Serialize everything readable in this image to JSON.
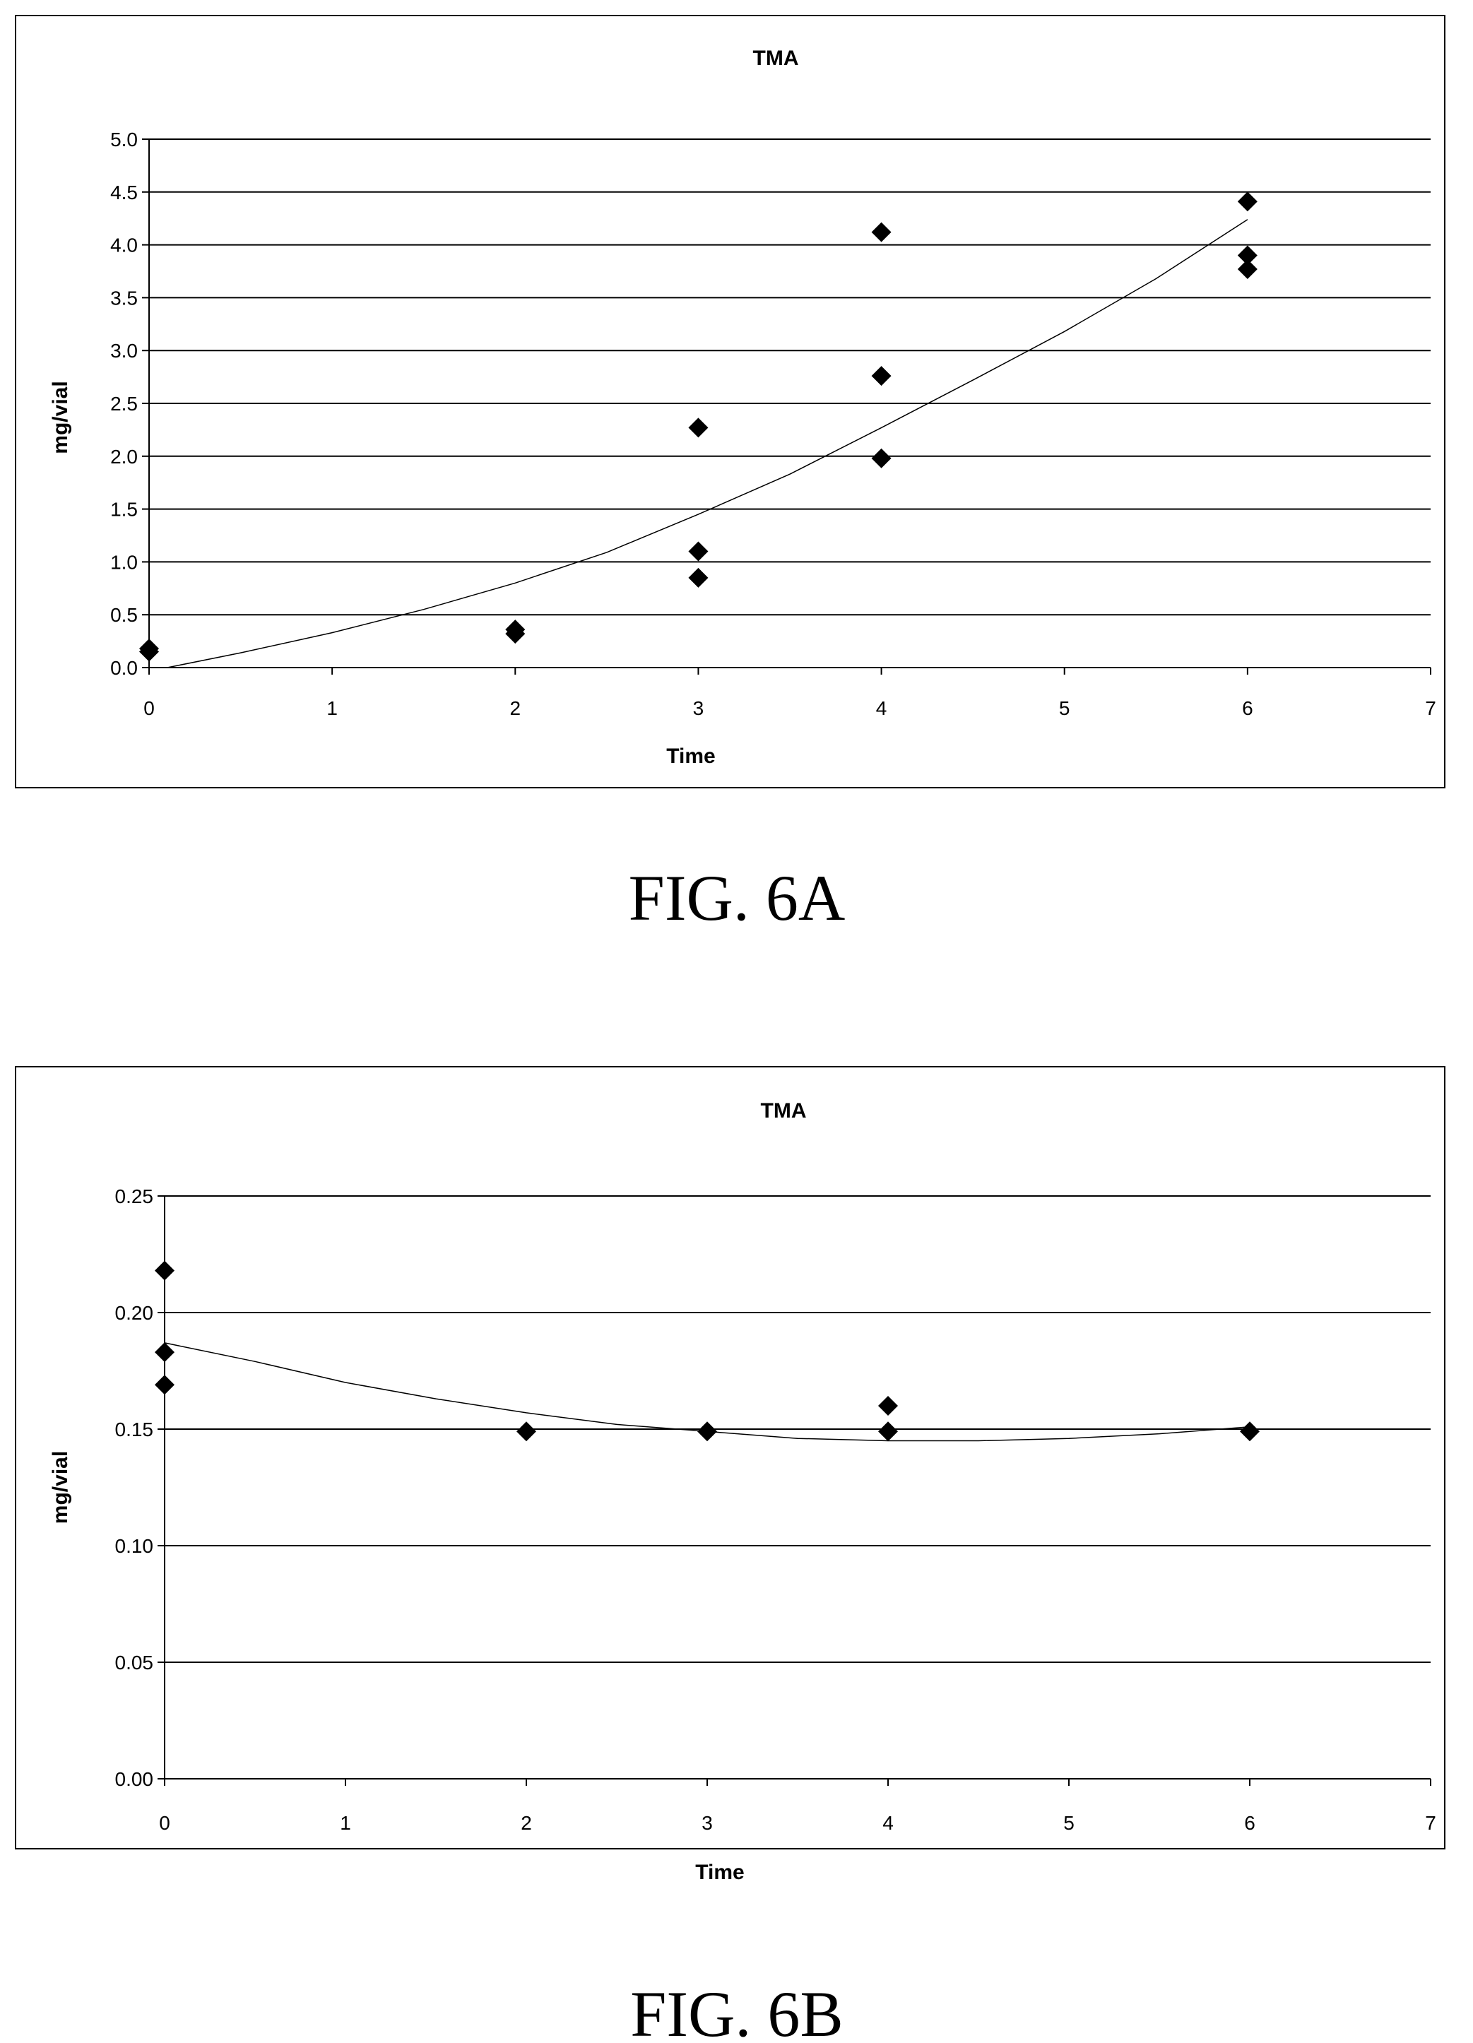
{
  "figures": [
    {
      "caption": "FIG. 6A"
    },
    {
      "caption": "FIG. 6B"
    }
  ],
  "chart_data": [
    {
      "type": "scatter",
      "title": "TMA",
      "xlabel": "Time",
      "ylabel": "mg/vial",
      "xlim": [
        0,
        7
      ],
      "ylim": [
        0,
        5
      ],
      "xticks": [
        0,
        1,
        2,
        3,
        4,
        5,
        6,
        7
      ],
      "yticks": [
        "0.0",
        "0.5",
        "1.0",
        "1.5",
        "2.0",
        "2.5",
        "3.0",
        "3.5",
        "4.0",
        "4.5",
        "5.0"
      ],
      "grid": "horizontal",
      "points": [
        {
          "x": 0,
          "y": 0.18
        },
        {
          "x": 0,
          "y": 0.15
        },
        {
          "x": 2,
          "y": 0.36
        },
        {
          "x": 2,
          "y": 0.32
        },
        {
          "x": 3,
          "y": 2.27
        },
        {
          "x": 3,
          "y": 1.1
        },
        {
          "x": 3,
          "y": 0.85
        },
        {
          "x": 4,
          "y": 4.12
        },
        {
          "x": 4,
          "y": 2.76
        },
        {
          "x": 4,
          "y": 1.98
        },
        {
          "x": 6,
          "y": 4.41
        },
        {
          "x": 6,
          "y": 3.9
        },
        {
          "x": 6,
          "y": 3.77
        }
      ],
      "trendline": {
        "type": "polynomial",
        "points": [
          {
            "x": 0.1,
            "y": 0.0
          },
          {
            "x": 0.5,
            "y": 0.14
          },
          {
            "x": 1.0,
            "y": 0.33
          },
          {
            "x": 1.5,
            "y": 0.55
          },
          {
            "x": 2.0,
            "y": 0.8
          },
          {
            "x": 2.5,
            "y": 1.09
          },
          {
            "x": 3.0,
            "y": 1.45
          },
          {
            "x": 3.5,
            "y": 1.83
          },
          {
            "x": 4.0,
            "y": 2.27
          },
          {
            "x": 4.5,
            "y": 2.72
          },
          {
            "x": 5.0,
            "y": 3.18
          },
          {
            "x": 5.5,
            "y": 3.68
          },
          {
            "x": 6.0,
            "y": 4.24
          }
        ]
      }
    },
    {
      "type": "scatter",
      "title": "TMA",
      "xlabel": "Time",
      "ylabel": "mg/vial",
      "xlim": [
        0,
        7
      ],
      "ylim": [
        0,
        0.25
      ],
      "xticks": [
        0,
        1,
        2,
        3,
        4,
        5,
        6,
        7
      ],
      "yticks": [
        "0.00",
        "0.05",
        "0.10",
        "0.15",
        "0.20",
        "0.25"
      ],
      "grid": "horizontal",
      "points": [
        {
          "x": 0,
          "y": 0.218
        },
        {
          "x": 0,
          "y": 0.183
        },
        {
          "x": 0,
          "y": 0.169
        },
        {
          "x": 2,
          "y": 0.149
        },
        {
          "x": 3,
          "y": 0.149
        },
        {
          "x": 4,
          "y": 0.16
        },
        {
          "x": 4,
          "y": 0.149
        },
        {
          "x": 6,
          "y": 0.149
        }
      ],
      "trendline": {
        "type": "polynomial",
        "points": [
          {
            "x": 0.0,
            "y": 0.187
          },
          {
            "x": 0.5,
            "y": 0.179
          },
          {
            "x": 1.0,
            "y": 0.17
          },
          {
            "x": 1.5,
            "y": 0.163
          },
          {
            "x": 2.0,
            "y": 0.157
          },
          {
            "x": 2.5,
            "y": 0.152
          },
          {
            "x": 3.0,
            "y": 0.149
          },
          {
            "x": 3.5,
            "y": 0.146
          },
          {
            "x": 4.0,
            "y": 0.145
          },
          {
            "x": 4.5,
            "y": 0.145
          },
          {
            "x": 5.0,
            "y": 0.146
          },
          {
            "x": 5.5,
            "y": 0.148
          },
          {
            "x": 6.0,
            "y": 0.151
          }
        ]
      }
    }
  ]
}
